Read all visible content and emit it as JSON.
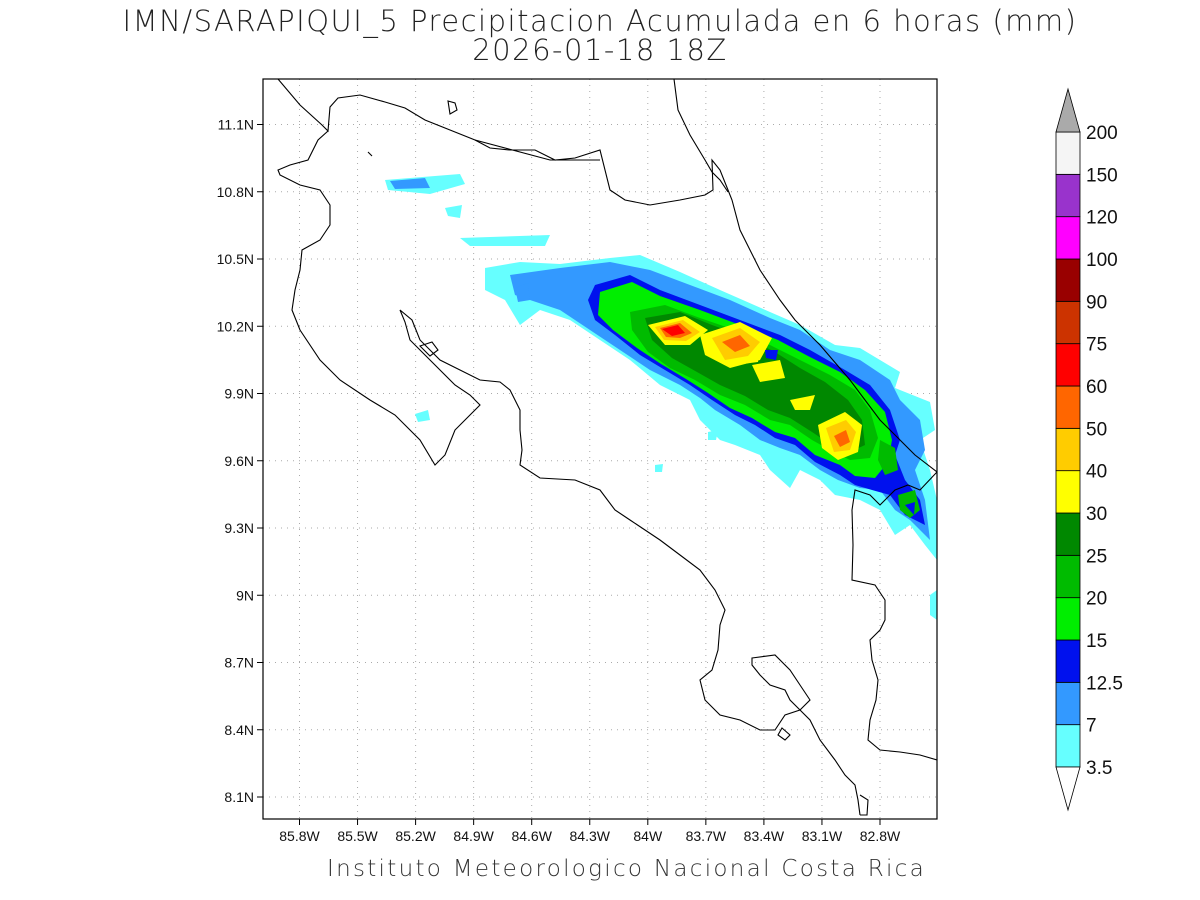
{
  "title": "IMN/SARAPIQUI_5 Precipitacion Acumulada en 6 horas (mm)",
  "subtitle": "2026-01-18 18Z",
  "footer": "Instituto Meteorologico Nacional Costa Rica",
  "map": {
    "lon_range": [
      -86.0,
      -82.6
    ],
    "lat_range": [
      8.0,
      11.3
    ],
    "lon_ticks": [
      "85.8W",
      "85.5W",
      "85.2W",
      "84.9W",
      "84.6W",
      "84.3W",
      "84W",
      "83.7W",
      "83.4W",
      "83.1W",
      "82.8W"
    ],
    "lon_tick_values": [
      -85.8,
      -85.5,
      -85.2,
      -84.9,
      -84.6,
      -84.3,
      -84.0,
      -83.7,
      -83.4,
      -83.1,
      -82.8
    ],
    "lat_ticks": [
      "11.1N",
      "10.8N",
      "10.5N",
      "10.2N",
      "9.9N",
      "9.6N",
      "9.3N",
      "9N",
      "8.7N",
      "8.4N",
      "8.1N"
    ],
    "lat_tick_values": [
      11.1,
      10.8,
      10.5,
      10.2,
      9.9,
      9.6,
      9.3,
      9.0,
      8.7,
      8.4,
      8.1
    ],
    "grid": "dotted"
  },
  "colorbar": {
    "labels": [
      "3.5",
      "7",
      "12.5",
      "15",
      "20",
      "25",
      "30",
      "40",
      "50",
      "60",
      "75",
      "90",
      "100",
      "120",
      "150",
      "200"
    ],
    "colors": [
      "#66ffff",
      "#3399ff",
      "#0011ee",
      "#00ee00",
      "#00bb00",
      "#008800",
      "#ffff00",
      "#ffcc00",
      "#ff6600",
      "#ff0000",
      "#cc3300",
      "#990000",
      "#ff00ff",
      "#9933cc",
      "#f5f5f5"
    ],
    "over_color": "#aaaaaa",
    "under_color": "#ffffff"
  },
  "precip_bands": [
    {
      "lon": -85.0,
      "lat": 10.85,
      "level": "7"
    },
    {
      "lon": -83.85,
      "lat": 10.18,
      "level": "60"
    },
    {
      "lon": -83.6,
      "lat": 10.12,
      "level": "40"
    },
    {
      "lon": -83.4,
      "lat": 10.03,
      "level": "40"
    },
    {
      "lon": -83.0,
      "lat": 9.7,
      "level": "40"
    },
    {
      "lon": -82.75,
      "lat": 9.65,
      "level": "25"
    },
    {
      "lon": -82.7,
      "lat": 9.4,
      "level": "15"
    }
  ]
}
